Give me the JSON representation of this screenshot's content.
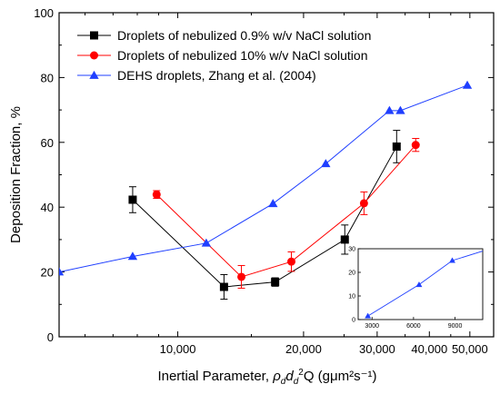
{
  "chart_data": [
    {
      "type": "line",
      "xlabel": "Inertial Parameter, ρ_d d_d^2 Q (gμm²s⁻¹)",
      "xlabel_parts": {
        "lead": "Inertial Parameter, ",
        "rho": "ρ",
        "d_sub": "d",
        "d": "d",
        "d_sub2": "d",
        "sup": "2",
        "q": "Q",
        "units": " (gμm²s⁻¹)"
      },
      "ylabel": "Deposition Fraction, %",
      "x_scale": "log",
      "xlim": [
        5200,
        57000
      ],
      "ylim": [
        0,
        100
      ],
      "x_ticks": [
        10000,
        20000,
        30000,
        40000,
        50000
      ],
      "x_tick_labels": [
        "10,000",
        "20,000",
        "30,000",
        "40,000",
        "50,000"
      ],
      "y_ticks": [
        0,
        20,
        40,
        60,
        80,
        100
      ],
      "y_tick_labels": [
        "0",
        "20",
        "40",
        "60",
        "80",
        "100"
      ],
      "legend_position": "top-left",
      "series": [
        {
          "name": "Droplets of nebulized 0.9% w/v NaCl solution",
          "color": "#000000",
          "marker": "square",
          "x": [
            7800,
            12900,
            17100,
            25100,
            33400
          ],
          "y": [
            42.3,
            15.4,
            16.9,
            30.0,
            58.7
          ],
          "error": [
            4.0,
            3.8,
            1.3,
            4.5,
            5.0
          ]
        },
        {
          "name": "Droplets of nebulized 10% w/v NaCl solution",
          "color": "#ff0000",
          "marker": "circle",
          "x": [
            8900,
            14200,
            18700,
            27900,
            37100
          ],
          "y": [
            43.9,
            18.5,
            23.2,
            41.2,
            59.2
          ],
          "error": [
            1.2,
            3.5,
            3.0,
            3.5,
            2.0
          ]
        },
        {
          "name": "DEHS droplets, Zhang et al. (2004)",
          "color": "#1f3fff",
          "marker": "triangle",
          "x": [
            5200,
            7800,
            11700,
            16900,
            22600,
            32100,
            34100,
            49300
          ],
          "y": [
            20.0,
            24.8,
            28.9,
            41.1,
            53.4,
            69.8,
            69.8,
            77.6
          ],
          "error": []
        }
      ]
    },
    {
      "type": "line",
      "xlim": [
        2000,
        11000
      ],
      "ylim": [
        0,
        30
      ],
      "x_ticks": [
        3000,
        6000,
        9000
      ],
      "x_tick_labels": [
        "3000",
        "6000",
        "9000"
      ],
      "y_ticks": [
        0,
        10,
        20,
        30
      ],
      "y_tick_labels": [
        "0",
        "10",
        "20",
        "30"
      ],
      "series": [
        {
          "color": "#1f3fff",
          "marker": "triangle",
          "x": [
            2700,
            6400,
            8800,
            11000
          ],
          "y": [
            1.5,
            14.8,
            25.0,
            29.0
          ]
        }
      ]
    }
  ]
}
